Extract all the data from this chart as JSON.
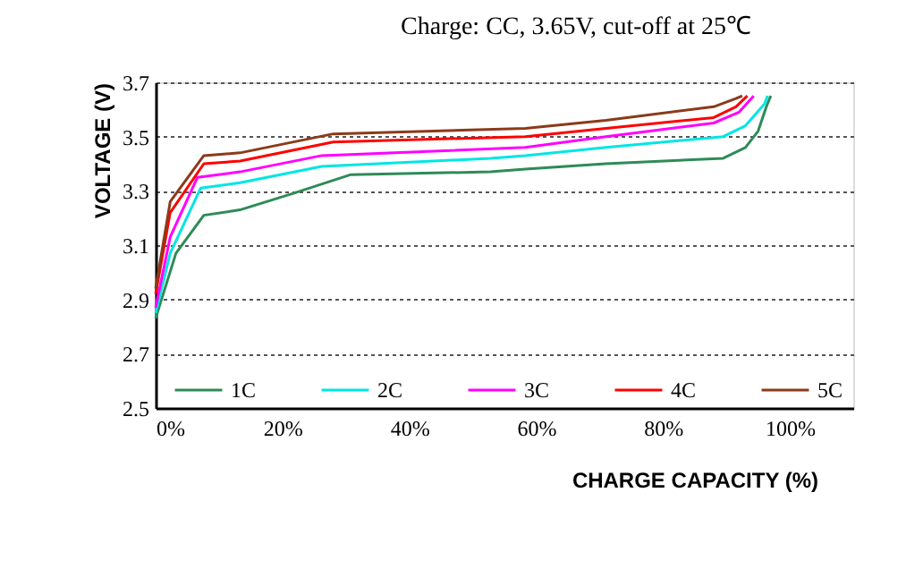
{
  "chart_data": {
    "type": "line",
    "title": "Charge: CC, 3.65V, cut-off at  25℃",
    "xlabel": "CHARGE CAPACITY (%)",
    "ylabel": "VOLTAGE (V)",
    "xlim": [
      0,
      110
    ],
    "xticks": [
      {
        "value": 0,
        "label": "0%"
      },
      {
        "value": 20,
        "label": "20%"
      },
      {
        "value": 40,
        "label": "40%"
      },
      {
        "value": 60,
        "label": "60%"
      },
      {
        "value": 80,
        "label": "80%"
      },
      {
        "value": 100,
        "label": "100%"
      }
    ],
    "ylim": [
      2.5,
      3.7
    ],
    "yticks": [
      2.5,
      2.7,
      2.9,
      3.1,
      3.3,
      3.5,
      3.7
    ],
    "grid": "y",
    "legend": "bottom",
    "marker": "none",
    "line_style": "solid",
    "series": [
      {
        "name": "1C",
        "color": "#2e8b57",
        "x": [
          0,
          3.2,
          7.6,
          13.3,
          21.6,
          30.8,
          52.8,
          58.3,
          71,
          89.5,
          93,
          95,
          96.3,
          97
        ],
        "values": [
          2.83,
          3.07,
          3.21,
          3.23,
          3.29,
          3.36,
          3.37,
          3.38,
          3.4,
          3.42,
          3.46,
          3.52,
          3.61,
          3.65
        ]
      },
      {
        "name": "2C",
        "color": "#00e5e5",
        "x": [
          0,
          2.3,
          7.1,
          13.3,
          26.2,
          52.8,
          58.3,
          71,
          89.5,
          93,
          96,
          96.5
        ],
        "values": [
          2.85,
          3.07,
          3.31,
          3.33,
          3.39,
          3.42,
          3.43,
          3.46,
          3.5,
          3.54,
          3.62,
          3.65
        ]
      },
      {
        "name": "3C",
        "color": "#ff00ff",
        "x": [
          0,
          2.3,
          6.6,
          13.3,
          26.2,
          58.3,
          71,
          88,
          92,
          94.3
        ],
        "values": [
          2.87,
          3.13,
          3.35,
          3.37,
          3.43,
          3.46,
          3.5,
          3.55,
          3.59,
          3.65
        ]
      },
      {
        "name": "4C",
        "color": "#ff0000",
        "x": [
          0,
          2.3,
          7.6,
          13.3,
          28,
          58.3,
          71,
          88,
          91.5,
          93.3
        ],
        "values": [
          2.92,
          3.22,
          3.4,
          3.41,
          3.48,
          3.5,
          3.53,
          3.57,
          3.61,
          3.65
        ]
      },
      {
        "name": "5C",
        "color": "#8b3a1a",
        "x": [
          0,
          2.3,
          7.6,
          13.3,
          28,
          58.3,
          71,
          88,
          91.5,
          92.5
        ],
        "values": [
          2.94,
          3.26,
          3.43,
          3.44,
          3.51,
          3.53,
          3.56,
          3.61,
          3.64,
          3.65
        ]
      }
    ]
  }
}
